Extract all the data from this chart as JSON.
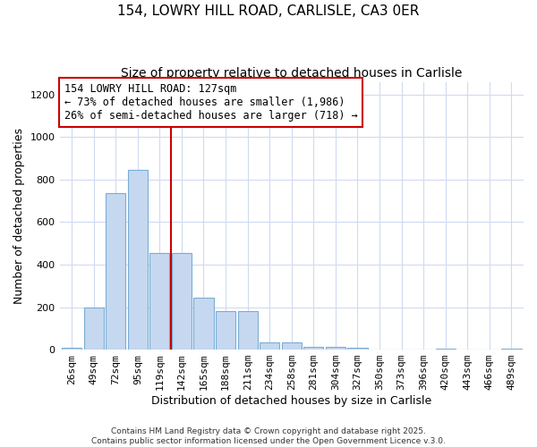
{
  "title_line1": "154, LOWRY HILL ROAD, CARLISLE, CA3 0ER",
  "title_line2": "Size of property relative to detached houses in Carlisle",
  "xlabel": "Distribution of detached houses by size in Carlisle",
  "ylabel": "Number of detached properties",
  "categories": [
    "26sqm",
    "49sqm",
    "72sqm",
    "95sqm",
    "119sqm",
    "142sqm",
    "165sqm",
    "188sqm",
    "211sqm",
    "234sqm",
    "258sqm",
    "281sqm",
    "304sqm",
    "327sqm",
    "350sqm",
    "373sqm",
    "396sqm",
    "420sqm",
    "443sqm",
    "466sqm",
    "489sqm"
  ],
  "values": [
    10,
    200,
    735,
    845,
    455,
    455,
    245,
    183,
    183,
    35,
    35,
    15,
    15,
    10,
    0,
    0,
    0,
    5,
    0,
    0,
    5
  ],
  "bar_color": "#c5d8f0",
  "bar_edge_color": "#7aadd4",
  "bar_edge_width": 0.8,
  "ylim": [
    0,
    1260
  ],
  "yticks": [
    0,
    200,
    400,
    600,
    800,
    1000,
    1200
  ],
  "red_line_x": 4.5,
  "red_line_color": "#cc0000",
  "annotation_title": "154 LOWRY HILL ROAD: 127sqm",
  "annotation_line1": "← 73% of detached houses are smaller (1,986)",
  "annotation_line2": "26% of semi-detached houses are larger (718) →",
  "annotation_box_facecolor": "#ffffff",
  "annotation_box_edgecolor": "#cc0000",
  "plot_background": "#ffffff",
  "figure_background": "#ffffff",
  "grid_color": "#d0daf0",
  "footer_line1": "Contains HM Land Registry data © Crown copyright and database right 2025.",
  "footer_line2": "Contains public sector information licensed under the Open Government Licence v.3.0.",
  "title_fontsize": 11,
  "subtitle_fontsize": 10,
  "axis_label_fontsize": 9,
  "tick_fontsize": 8,
  "annotation_fontsize": 8.5,
  "footer_fontsize": 6.5
}
